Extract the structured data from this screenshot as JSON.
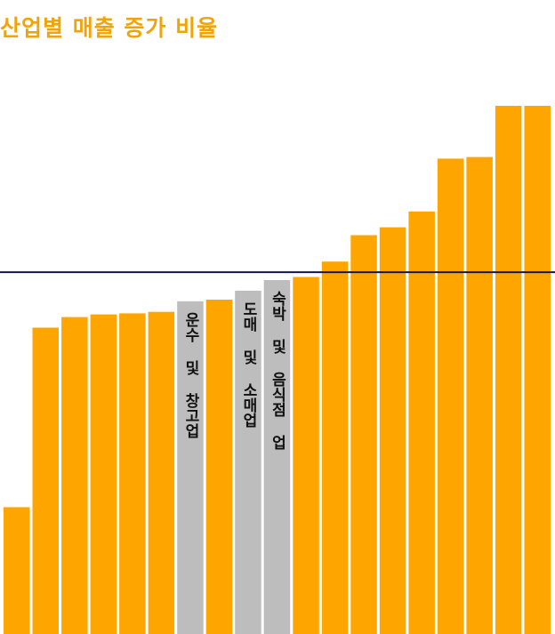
{
  "chart_data": {
    "type": "bar",
    "title": "산업별 매출 증가 비율",
    "xlabel": "",
    "ylabel": "",
    "categories": [
      "",
      "",
      "",
      "",
      "",
      "",
      "운수 및 창고업",
      "",
      "도매 및 소매업",
      "숙박 및 음식점 업",
      "",
      "",
      "",
      "",
      "",
      "",
      "",
      "",
      ""
    ],
    "values": [
      24,
      58,
      60,
      60.5,
      60.7,
      61,
      63,
      63.3,
      65,
      67,
      67.6,
      70.5,
      75.5,
      77,
      80,
      90,
      90.3,
      100,
      100
    ],
    "highlighted_categories": [
      "운수 및 창고업",
      "도매 및 소매업",
      "숙박 및 음식점 업"
    ],
    "reference_line": {
      "value": 68.5
    },
    "ylim": [
      0,
      100
    ],
    "grid": false,
    "legend": "none",
    "colors": {
      "bar": "#ffa500",
      "highlight": "#bdbdbd",
      "reference_line": "#141450",
      "title": "#f0a40a"
    }
  }
}
